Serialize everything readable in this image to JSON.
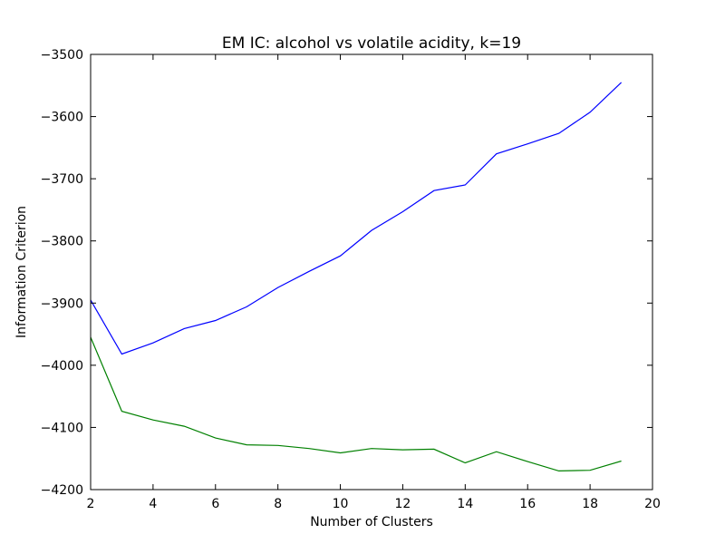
{
  "chart_data": {
    "type": "line",
    "title": "EM IC: alcohol vs volatile acidity, k=19",
    "xlabel": "Number of Clusters",
    "ylabel": "Information Criterion",
    "xlim": [
      2,
      20
    ],
    "ylim": [
      -4200,
      -3500
    ],
    "xticks": [
      2,
      4,
      6,
      8,
      10,
      12,
      14,
      16,
      18,
      20
    ],
    "yticks": [
      -3500,
      -3600,
      -3700,
      -3800,
      -3900,
      -4000,
      -4100,
      -4200
    ],
    "grid": false,
    "x": [
      2,
      3,
      4,
      5,
      6,
      7,
      8,
      9,
      10,
      11,
      12,
      13,
      14,
      15,
      16,
      17,
      18,
      19
    ],
    "series": [
      {
        "color": "#0000ff",
        "values": [
          -3895,
          -3982,
          -3964,
          -3941,
          -3928,
          -3906,
          -3875,
          -3849,
          -3824,
          -3783,
          -3753,
          -3719,
          -3710,
          -3660,
          -3644,
          -3627,
          -3593,
          -3545
        ]
      },
      {
        "color": "#008000",
        "values": [
          -3955,
          -4074,
          -4088,
          -4098,
          -4117,
          -4128,
          -4129,
          -4134,
          -4141,
          -4134,
          -4136,
          -4135,
          -4157,
          -4139,
          -4155,
          -4170,
          -4169,
          -4154
        ]
      }
    ]
  }
}
